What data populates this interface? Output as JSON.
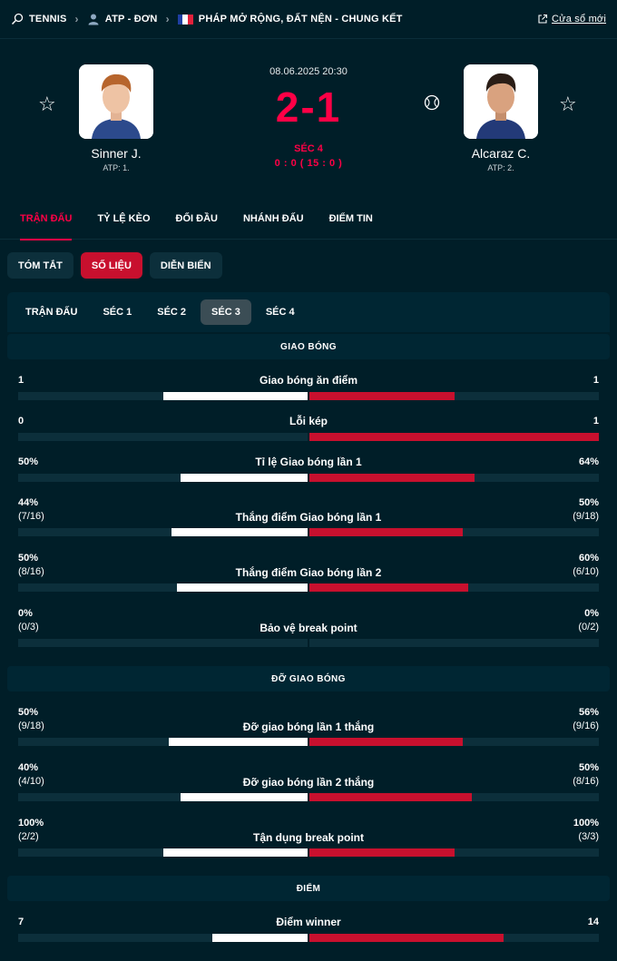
{
  "breadcrumb": {
    "sport": "TENNIS",
    "category": "ATP - ĐƠN",
    "tournament": "PHÁP MỞ RỘNG, ĐẤT NỆN - CHUNG KẾT",
    "new_window": "Cửa sổ mới"
  },
  "match": {
    "datetime": "08.06.2025 20:30",
    "score": "2-1",
    "set_label": "SÉC 4",
    "game_score": "0 : 0 ( 15 : 0 )",
    "home": {
      "name": "Sinner J.",
      "rank": "ATP: 1."
    },
    "away": {
      "name": "Alcaraz C.",
      "rank": "ATP: 2."
    }
  },
  "tabs": [
    "TRẬN ĐẤU",
    "TỶ LỆ KÈO",
    "ĐỐI ĐẦU",
    "NHÁNH ĐẤU",
    "ĐIỂM TIN"
  ],
  "pills": [
    "TÓM TẮT",
    "SỐ LIỆU",
    "DIỄN BIẾN"
  ],
  "set_tabs": [
    "TRẬN ĐẤU",
    "SÉC 1",
    "SÉC 2",
    "SÉC 3",
    "SÉC 4"
  ],
  "sections": [
    {
      "title": "GIAO BÓNG"
    },
    {
      "title": "ĐỠ GIAO BÓNG"
    },
    {
      "title": "ĐIỂM"
    }
  ],
  "stats": [
    {
      "label": "Giao bóng ăn điểm",
      "home": "1",
      "home_sub": "",
      "away": "1",
      "away_sub": "",
      "home_ratio": 0.5,
      "away_ratio": 0.5
    },
    {
      "label": "Lỗi kép",
      "home": "0",
      "home_sub": "",
      "away": "1",
      "away_sub": "",
      "home_ratio": 0,
      "away_ratio": 1
    },
    {
      "label": "Tỉ lệ Giao bóng lần 1",
      "home": "50%",
      "home_sub": "",
      "away": "64%",
      "away_sub": "",
      "home_ratio": 0.44,
      "away_ratio": 0.57
    },
    {
      "label": "Thắng điểm Giao bóng lần 1",
      "home": "44%",
      "home_sub": "(7/16)",
      "away": "50%",
      "away_sub": "(9/18)",
      "home_ratio": 0.47,
      "away_ratio": 0.53
    },
    {
      "label": "Thắng điểm Giao bóng lần 2",
      "home": "50%",
      "home_sub": "(8/16)",
      "away": "60%",
      "away_sub": "(6/10)",
      "home_ratio": 0.45,
      "away_ratio": 0.55
    },
    {
      "label": "Bảo vệ break point",
      "home": "0%",
      "home_sub": "(0/3)",
      "away": "0%",
      "away_sub": "(0/2)",
      "home_ratio": 0,
      "away_ratio": 0
    },
    {
      "label": "Đỡ giao bóng lần 1 thắng",
      "home": "50%",
      "home_sub": "(9/18)",
      "away": "56%",
      "away_sub": "(9/16)",
      "home_ratio": 0.48,
      "away_ratio": 0.53
    },
    {
      "label": "Đỡ giao bóng lần 2 thắng",
      "home": "40%",
      "home_sub": "(4/10)",
      "away": "50%",
      "away_sub": "(8/16)",
      "home_ratio": 0.44,
      "away_ratio": 0.56
    },
    {
      "label": "Tận dụng break point",
      "home": "100%",
      "home_sub": "(2/2)",
      "away": "100%",
      "away_sub": "(3/3)",
      "home_ratio": 0.5,
      "away_ratio": 0.5
    },
    {
      "label": "Điểm winner",
      "home": "7",
      "home_sub": "",
      "away": "14",
      "away_sub": "",
      "home_ratio": 0.33,
      "away_ratio": 0.67
    }
  ],
  "colors": {
    "accent": "#ff0046",
    "away_bar": "#c8102e",
    "home_bar": "#ffffff",
    "background": "#001e28"
  },
  "icons": [
    "tennis-racket-icon",
    "user-icon",
    "france-flag-icon",
    "external-link-icon",
    "star-icon",
    "tennis-ball-icon"
  ]
}
